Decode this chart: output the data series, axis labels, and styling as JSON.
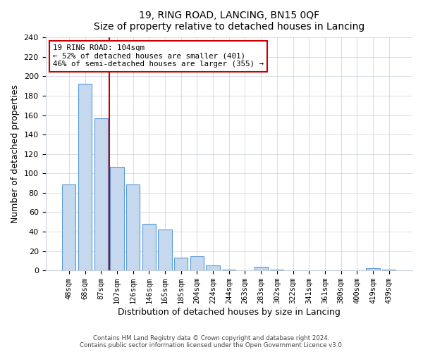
{
  "title": "19, RING ROAD, LANCING, BN15 0QF",
  "subtitle": "Size of property relative to detached houses in Lancing",
  "xlabel": "Distribution of detached houses by size in Lancing",
  "ylabel": "Number of detached properties",
  "bar_labels": [
    "48sqm",
    "68sqm",
    "87sqm",
    "107sqm",
    "126sqm",
    "146sqm",
    "165sqm",
    "185sqm",
    "204sqm",
    "224sqm",
    "244sqm",
    "263sqm",
    "283sqm",
    "302sqm",
    "322sqm",
    "341sqm",
    "361sqm",
    "380sqm",
    "400sqm",
    "419sqm",
    "439sqm"
  ],
  "bar_values": [
    89,
    192,
    157,
    107,
    89,
    48,
    42,
    13,
    15,
    5,
    1,
    0,
    4,
    1,
    0,
    0,
    0,
    0,
    0,
    2,
    1
  ],
  "bar_color": "#c5d8ed",
  "bar_edge_color": "#5b9bd5",
  "vline_x": 2.5,
  "vline_color": "#cc0000",
  "annotation_text": "19 RING ROAD: 104sqm\n← 52% of detached houses are smaller (401)\n46% of semi-detached houses are larger (355) →",
  "annotation_box_color": "#ffffff",
  "annotation_box_edge": "#cc0000",
  "ylim": [
    0,
    240
  ],
  "yticks": [
    0,
    20,
    40,
    60,
    80,
    100,
    120,
    140,
    160,
    180,
    200,
    220,
    240
  ],
  "footer_line1": "Contains HM Land Registry data © Crown copyright and database right 2024.",
  "footer_line2": "Contains public sector information licensed under the Open Government Licence v3.0.",
  "background_color": "#ffffff",
  "grid_color": "#c8d0d8"
}
